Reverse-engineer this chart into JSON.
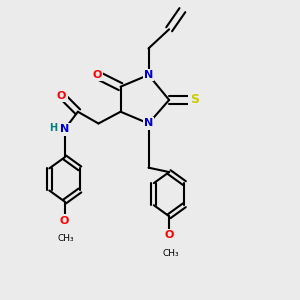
{
  "bg_color": "#ebebeb",
  "colors": {
    "N": "#0000cc",
    "O": "#ff0000",
    "S": "#cccc00",
    "C": "#000000",
    "H": "#008080",
    "bond": "#000000"
  },
  "lw": 1.5
}
